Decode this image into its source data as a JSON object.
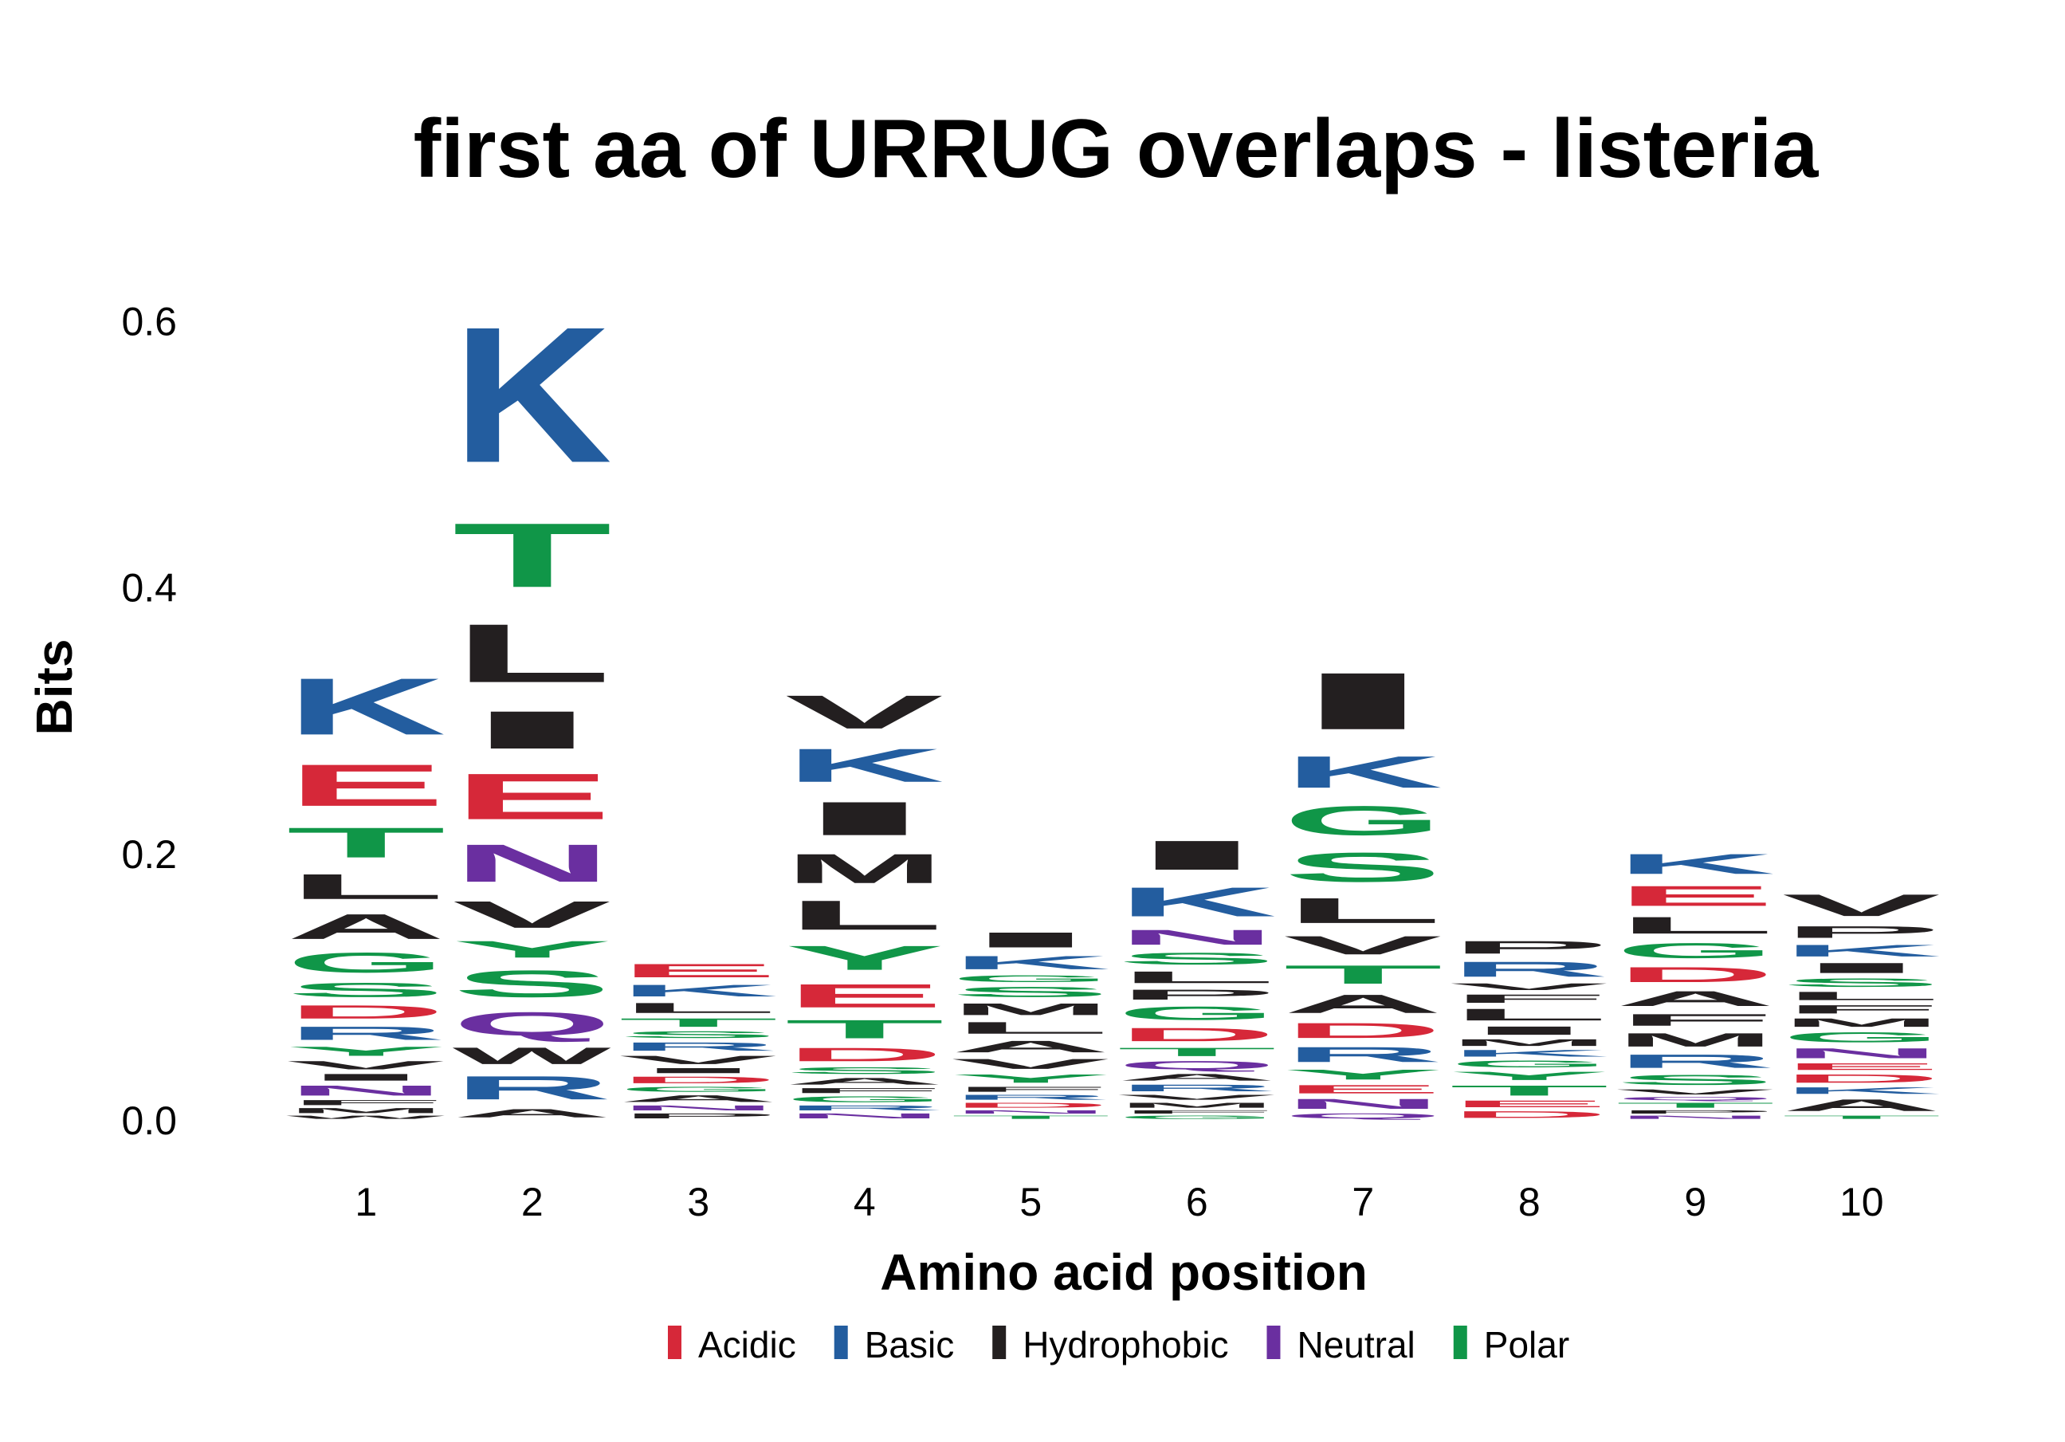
{
  "chart_data": {
    "type": "sequence-logo",
    "title": "first aa of URRUG overlaps - listeria",
    "xlabel": "Amino acid position",
    "ylabel": "Bits",
    "categories": [
      "1",
      "2",
      "3",
      "4",
      "5",
      "6",
      "7",
      "8",
      "9",
      "10"
    ],
    "ylim": [
      0,
      0.66
    ],
    "yticks": [
      {
        "value": 0.0,
        "label": "0.0"
      },
      {
        "value": 0.2,
        "label": "0.2"
      },
      {
        "value": 0.4,
        "label": "0.4"
      },
      {
        "value": 0.6,
        "label": "0.6"
      }
    ],
    "grid": false,
    "legend_position": "bottom",
    "legend": [
      {
        "key": "Acidic",
        "label": "Acidic",
        "color": "#d62839"
      },
      {
        "key": "Basic",
        "label": "Basic",
        "color": "#235d9f"
      },
      {
        "key": "Hydrophobic",
        "label": "Hydrophobic",
        "color": "#231f20"
      },
      {
        "key": "Neutral",
        "label": "Neutral",
        "color": "#6a2fa0"
      },
      {
        "key": "Polar",
        "label": "Polar",
        "color": "#109648"
      }
    ],
    "residue_classes": {
      "D": "Acidic",
      "E": "Acidic",
      "K": "Basic",
      "R": "Basic",
      "H": "Basic",
      "A": "Hydrophobic",
      "I": "Hydrophobic",
      "L": "Hydrophobic",
      "M": "Hydrophobic",
      "F": "Hydrophobic",
      "W": "Hydrophobic",
      "V": "Hydrophobic",
      "P": "Hydrophobic",
      "N": "Neutral",
      "Q": "Neutral",
      "G": "Polar",
      "S": "Polar",
      "T": "Polar",
      "Y": "Polar",
      "C": "Polar"
    },
    "positions": [
      {
        "position": "1",
        "stack": [
          [
            "W",
            0.004
          ],
          [
            "M",
            0.006
          ],
          [
            "F",
            0.006
          ],
          [
            "N",
            0.012
          ],
          [
            "I",
            0.008
          ],
          [
            "V",
            0.01
          ],
          [
            "Y",
            0.011
          ],
          [
            "R",
            0.016
          ],
          [
            "D",
            0.016
          ],
          [
            "S",
            0.017
          ],
          [
            "G",
            0.024
          ],
          [
            "A",
            0.03
          ],
          [
            "L",
            0.03
          ],
          [
            "T",
            0.036
          ],
          [
            "E",
            0.05
          ],
          [
            "K",
            0.068
          ]
        ]
      },
      {
        "position": "2",
        "stack": [
          [
            "A",
            0.01
          ],
          [
            "R",
            0.028
          ],
          [
            "W",
            0.02
          ],
          [
            "Q",
            0.028
          ],
          [
            "S",
            0.032
          ],
          [
            "Y",
            0.02
          ],
          [
            "V",
            0.032
          ],
          [
            "N",
            0.045
          ],
          [
            "E",
            0.055
          ],
          [
            "I",
            0.045
          ],
          [
            "L",
            0.07
          ],
          [
            "T",
            0.077
          ],
          [
            "K",
            0.163
          ]
        ]
      },
      {
        "position": "3",
        "stack": [
          [
            "P",
            0.006
          ],
          [
            "N",
            0.006
          ],
          [
            "A",
            0.008
          ],
          [
            "G",
            0.006
          ],
          [
            "D",
            0.008
          ],
          [
            "I",
            0.006
          ],
          [
            "V",
            0.01
          ],
          [
            "R",
            0.01
          ],
          [
            "S",
            0.008
          ],
          [
            "T",
            0.01
          ],
          [
            "L",
            0.012
          ],
          [
            "K",
            0.014
          ],
          [
            "E",
            0.016
          ]
        ]
      },
      {
        "position": "4",
        "stack": [
          [
            "N",
            0.006
          ],
          [
            "R",
            0.006
          ],
          [
            "G",
            0.007
          ],
          [
            "F",
            0.006
          ],
          [
            "A",
            0.008
          ],
          [
            "S",
            0.008
          ],
          [
            "D",
            0.016
          ],
          [
            "T",
            0.022
          ],
          [
            "E",
            0.028
          ],
          [
            "Y",
            0.029
          ],
          [
            "L",
            0.035
          ],
          [
            "M",
            0.035
          ],
          [
            "I",
            0.04
          ],
          [
            "K",
            0.04
          ],
          [
            "V",
            0.04
          ]
        ]
      },
      {
        "position": "5",
        "stack": [
          [
            "T",
            0.004
          ],
          [
            "N",
            0.004
          ],
          [
            "D",
            0.006
          ],
          [
            "R",
            0.006
          ],
          [
            "F",
            0.006
          ],
          [
            "Y",
            0.01
          ],
          [
            "V",
            0.012
          ],
          [
            "A",
            0.014
          ],
          [
            "L",
            0.014
          ],
          [
            "M",
            0.014
          ],
          [
            "S",
            0.012
          ],
          [
            "G",
            0.008
          ],
          [
            "K",
            0.016
          ],
          [
            "I",
            0.018
          ]
        ]
      },
      {
        "position": "6",
        "stack": [
          [
            "G",
            0.004
          ],
          [
            "F",
            0.004
          ],
          [
            "M",
            0.006
          ],
          [
            "V",
            0.006
          ],
          [
            "R",
            0.008
          ],
          [
            "A",
            0.008
          ],
          [
            "Q",
            0.01
          ],
          [
            "T",
            0.01
          ],
          [
            "D",
            0.016
          ],
          [
            "G",
            0.016
          ],
          [
            "P",
            0.012
          ],
          [
            "L",
            0.014
          ],
          [
            "S",
            0.014
          ],
          [
            "N",
            0.018
          ],
          [
            "K",
            0.035
          ],
          [
            "I",
            0.035
          ]
        ]
      },
      {
        "position": "7",
        "stack": [
          [
            "Q",
            0.006
          ],
          [
            "N",
            0.012
          ],
          [
            "E",
            0.01
          ],
          [
            "Y",
            0.012
          ],
          [
            "R",
            0.018
          ],
          [
            "D",
            0.018
          ],
          [
            "A",
            0.022
          ],
          [
            "T",
            0.022
          ],
          [
            "V",
            0.022
          ],
          [
            "L",
            0.03
          ],
          [
            "S",
            0.035
          ],
          [
            "G",
            0.035
          ],
          [
            "K",
            0.038
          ],
          [
            "I",
            0.068
          ]
        ]
      },
      {
        "position": "8",
        "stack": [
          [
            "D",
            0.008
          ],
          [
            "E",
            0.008
          ],
          [
            "T",
            0.012
          ],
          [
            "Y",
            0.01
          ],
          [
            "G",
            0.008
          ],
          [
            "K",
            0.008
          ],
          [
            "M",
            0.008
          ],
          [
            "I",
            0.01
          ],
          [
            "L",
            0.014
          ],
          [
            "F",
            0.01
          ],
          [
            "V",
            0.008
          ],
          [
            "R",
            0.018
          ],
          [
            "P",
            0.015
          ]
        ]
      },
      {
        "position": "9",
        "stack": [
          [
            "N",
            0.004
          ],
          [
            "P",
            0.004
          ],
          [
            "T",
            0.006
          ],
          [
            "Q",
            0.004
          ],
          [
            "V",
            0.006
          ],
          [
            "S",
            0.012
          ],
          [
            "R",
            0.016
          ],
          [
            "M",
            0.016
          ],
          [
            "F",
            0.014
          ],
          [
            "A",
            0.018
          ],
          [
            "D",
            0.018
          ],
          [
            "G",
            0.018
          ],
          [
            "L",
            0.02
          ],
          [
            "E",
            0.024
          ],
          [
            "K",
            0.024
          ]
        ]
      },
      {
        "position": "10",
        "stack": [
          [
            "T",
            0.004
          ],
          [
            "A",
            0.014
          ],
          [
            "K",
            0.008
          ],
          [
            "D",
            0.01
          ],
          [
            "E",
            0.008
          ],
          [
            "N",
            0.012
          ],
          [
            "G",
            0.012
          ],
          [
            "M",
            0.01
          ],
          [
            "F",
            0.01
          ],
          [
            "L",
            0.01
          ],
          [
            "S",
            0.01
          ],
          [
            "I",
            0.012
          ],
          [
            "K",
            0.014
          ],
          [
            "P",
            0.014
          ],
          [
            "V",
            0.026
          ]
        ]
      }
    ]
  }
}
